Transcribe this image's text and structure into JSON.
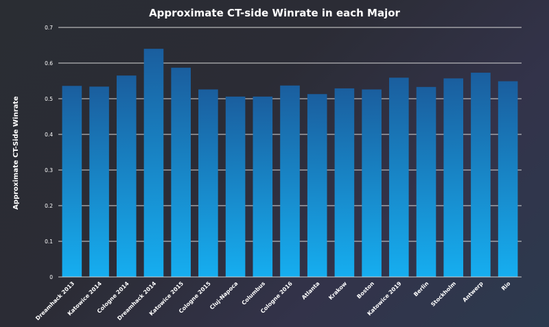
{
  "chart_data": {
    "type": "bar",
    "title": "Approximate CT-side Winrate in each Major",
    "ylabel": "Approximate CT-Side Winrate",
    "xlabel": "",
    "ylim": [
      0,
      0.7
    ],
    "yticks": [
      0,
      0.1,
      0.2,
      0.3,
      0.4,
      0.5,
      0.6,
      0.7
    ],
    "ytick_labels": [
      "0",
      "0.1",
      "0.2",
      "0.3",
      "0.4",
      "0.5",
      "0.6",
      "0.7"
    ],
    "grid": true,
    "categories": [
      "Dreamhack 2013",
      "Katowice 2014",
      "Cologne 2014",
      "Dreamhack 2014",
      "Katowice 2015",
      "Cologne 2015",
      "Cluj-Napoca",
      "Columbus",
      "Cologne 2016",
      "Atlanta",
      "Krakow",
      "Boston",
      "Katowice 2019",
      "Berlin",
      "Stockholm",
      "Antwerp",
      "Rio"
    ],
    "values": [
      0.536,
      0.534,
      0.565,
      0.64,
      0.587,
      0.526,
      0.506,
      0.506,
      0.537,
      0.513,
      0.529,
      0.526,
      0.559,
      0.533,
      0.557,
      0.573,
      0.549
    ],
    "colors": {
      "bar_top": "#1a5e9e",
      "bar_bottom": "#16aef0"
    }
  }
}
